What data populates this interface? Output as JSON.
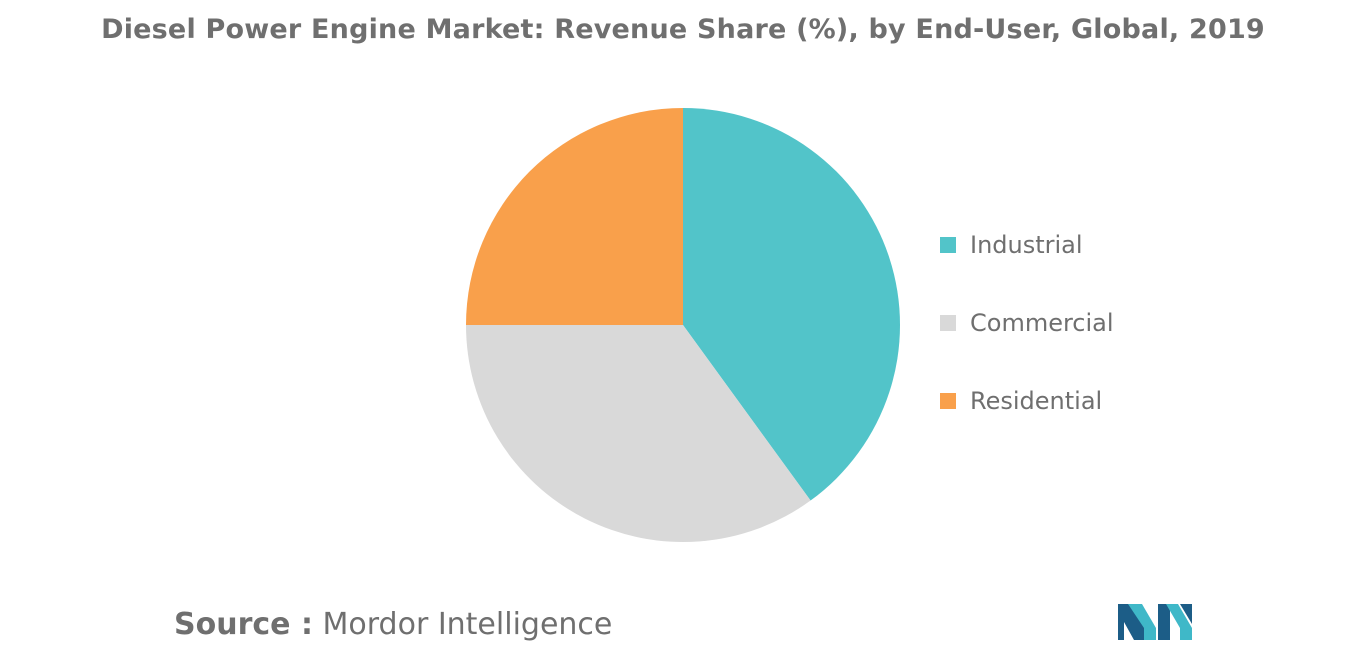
{
  "chart_data": {
    "type": "pie",
    "title": "Diesel Power Engine Market: Revenue Share (%), by End-User, Global, 2019",
    "categories": [
      "Industrial",
      "Commercial",
      "Residential"
    ],
    "values": [
      40,
      35,
      25
    ],
    "colors": [
      "#52c4c9",
      "#d9d9d9",
      "#f9a04b"
    ],
    "legend_position": "right",
    "start_angle_deg": 0,
    "direction": "clockwise"
  },
  "source": {
    "label": "Source :",
    "text": "Mordor Intelligence"
  },
  "logo": {
    "icon": "mordor-intelligence-logo-icon",
    "colors": [
      "#1c5d87",
      "#3fb8c8"
    ]
  }
}
